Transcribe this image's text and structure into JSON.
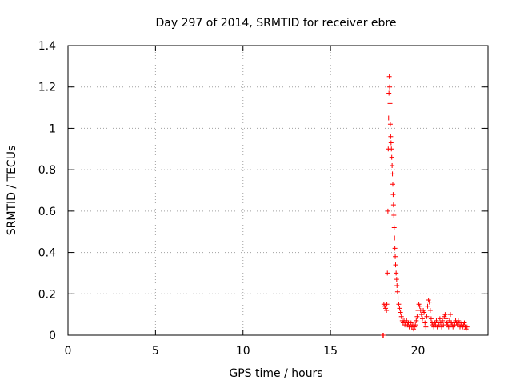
{
  "chart_data": {
    "type": "scatter",
    "title": "Day 297 of 2014, SRMTID for receiver ebre",
    "xlabel": "GPS time / hours",
    "ylabel": "SRMTID / TECUs",
    "xlim": [
      0,
      24
    ],
    "ylim": [
      0,
      1.4
    ],
    "xticks": [
      0,
      5,
      10,
      15,
      20
    ],
    "xtick_labels": [
      "0",
      "5",
      "10",
      "15",
      "20"
    ],
    "yticks": [
      0,
      0.2,
      0.4,
      0.6,
      0.8,
      1,
      1.2,
      1.4
    ],
    "ytick_labels": [
      "0",
      "0.2",
      "0.4",
      "0.6",
      "0.8",
      "1",
      "1.2",
      "1.4"
    ],
    "grid": true,
    "marker": "plus",
    "series": [
      {
        "name": "SRMTID",
        "color": "#ff0000",
        "points": [
          [
            18.0,
            0.0
          ],
          [
            18.02,
            0.0
          ],
          [
            18.05,
            0.15
          ],
          [
            18.1,
            0.14
          ],
          [
            18.15,
            0.13
          ],
          [
            18.2,
            0.12
          ],
          [
            18.22,
            0.15
          ],
          [
            18.25,
            0.3
          ],
          [
            18.28,
            0.6
          ],
          [
            18.3,
            0.9
          ],
          [
            18.32,
            1.05
          ],
          [
            18.34,
            1.17
          ],
          [
            18.36,
            1.25
          ],
          [
            18.38,
            1.2
          ],
          [
            18.4,
            1.12
          ],
          [
            18.42,
            1.02
          ],
          [
            18.44,
            0.96
          ],
          [
            18.46,
            0.93
          ],
          [
            18.48,
            0.9
          ],
          [
            18.5,
            0.86
          ],
          [
            18.52,
            0.82
          ],
          [
            18.54,
            0.78
          ],
          [
            18.56,
            0.73
          ],
          [
            18.58,
            0.68
          ],
          [
            18.6,
            0.63
          ],
          [
            18.62,
            0.58
          ],
          [
            18.64,
            0.52
          ],
          [
            18.66,
            0.47
          ],
          [
            18.68,
            0.42
          ],
          [
            18.7,
            0.38
          ],
          [
            18.72,
            0.34
          ],
          [
            18.75,
            0.3
          ],
          [
            18.78,
            0.27
          ],
          [
            18.8,
            0.24
          ],
          [
            18.83,
            0.21
          ],
          [
            18.86,
            0.18
          ],
          [
            18.9,
            0.15
          ],
          [
            18.95,
            0.13
          ],
          [
            19.0,
            0.11
          ],
          [
            19.05,
            0.09
          ],
          [
            19.1,
            0.07
          ],
          [
            19.15,
            0.06
          ],
          [
            19.2,
            0.07
          ],
          [
            19.25,
            0.05
          ],
          [
            19.3,
            0.06
          ],
          [
            19.35,
            0.07
          ],
          [
            19.4,
            0.05
          ],
          [
            19.45,
            0.06
          ],
          [
            19.5,
            0.04
          ],
          [
            19.55,
            0.05
          ],
          [
            19.6,
            0.06
          ],
          [
            19.65,
            0.04
          ],
          [
            19.7,
            0.05
          ],
          [
            19.75,
            0.03
          ],
          [
            19.8,
            0.04
          ],
          [
            19.85,
            0.05
          ],
          [
            19.9,
            0.07
          ],
          [
            19.95,
            0.09
          ],
          [
            20.0,
            0.12
          ],
          [
            20.05,
            0.15
          ],
          [
            20.1,
            0.14
          ],
          [
            20.15,
            0.12
          ],
          [
            20.2,
            0.1
          ],
          [
            20.25,
            0.08
          ],
          [
            20.3,
            0.12
          ],
          [
            20.35,
            0.11
          ],
          [
            20.4,
            0.06
          ],
          [
            20.45,
            0.04
          ],
          [
            20.5,
            0.09
          ],
          [
            20.55,
            0.14
          ],
          [
            20.6,
            0.17
          ],
          [
            20.65,
            0.16
          ],
          [
            20.7,
            0.12
          ],
          [
            20.75,
            0.08
          ],
          [
            20.8,
            0.06
          ],
          [
            20.85,
            0.05
          ],
          [
            20.9,
            0.04
          ],
          [
            20.95,
            0.06
          ],
          [
            21.0,
            0.05
          ],
          [
            21.05,
            0.07
          ],
          [
            21.1,
            0.04
          ],
          [
            21.15,
            0.06
          ],
          [
            21.2,
            0.05
          ],
          [
            21.25,
            0.08
          ],
          [
            21.3,
            0.06
          ],
          [
            21.35,
            0.04
          ],
          [
            21.4,
            0.07
          ],
          [
            21.45,
            0.05
          ],
          [
            21.5,
            0.09
          ],
          [
            21.55,
            0.1
          ],
          [
            21.6,
            0.08
          ],
          [
            21.65,
            0.06
          ],
          [
            21.7,
            0.05
          ],
          [
            21.75,
            0.04
          ],
          [
            21.8,
            0.07
          ],
          [
            21.85,
            0.1
          ],
          [
            21.9,
            0.06
          ],
          [
            21.95,
            0.05
          ],
          [
            22.0,
            0.04
          ],
          [
            22.05,
            0.06
          ],
          [
            22.1,
            0.05
          ],
          [
            22.15,
            0.07
          ],
          [
            22.2,
            0.06
          ],
          [
            22.25,
            0.05
          ],
          [
            22.3,
            0.07
          ],
          [
            22.35,
            0.06
          ],
          [
            22.4,
            0.04
          ],
          [
            22.45,
            0.05
          ],
          [
            22.5,
            0.06
          ],
          [
            22.55,
            0.04
          ],
          [
            22.6,
            0.05
          ],
          [
            22.65,
            0.06
          ],
          [
            22.7,
            0.04
          ],
          [
            22.75,
            0.03
          ],
          [
            22.8,
            0.04
          ]
        ]
      }
    ]
  }
}
